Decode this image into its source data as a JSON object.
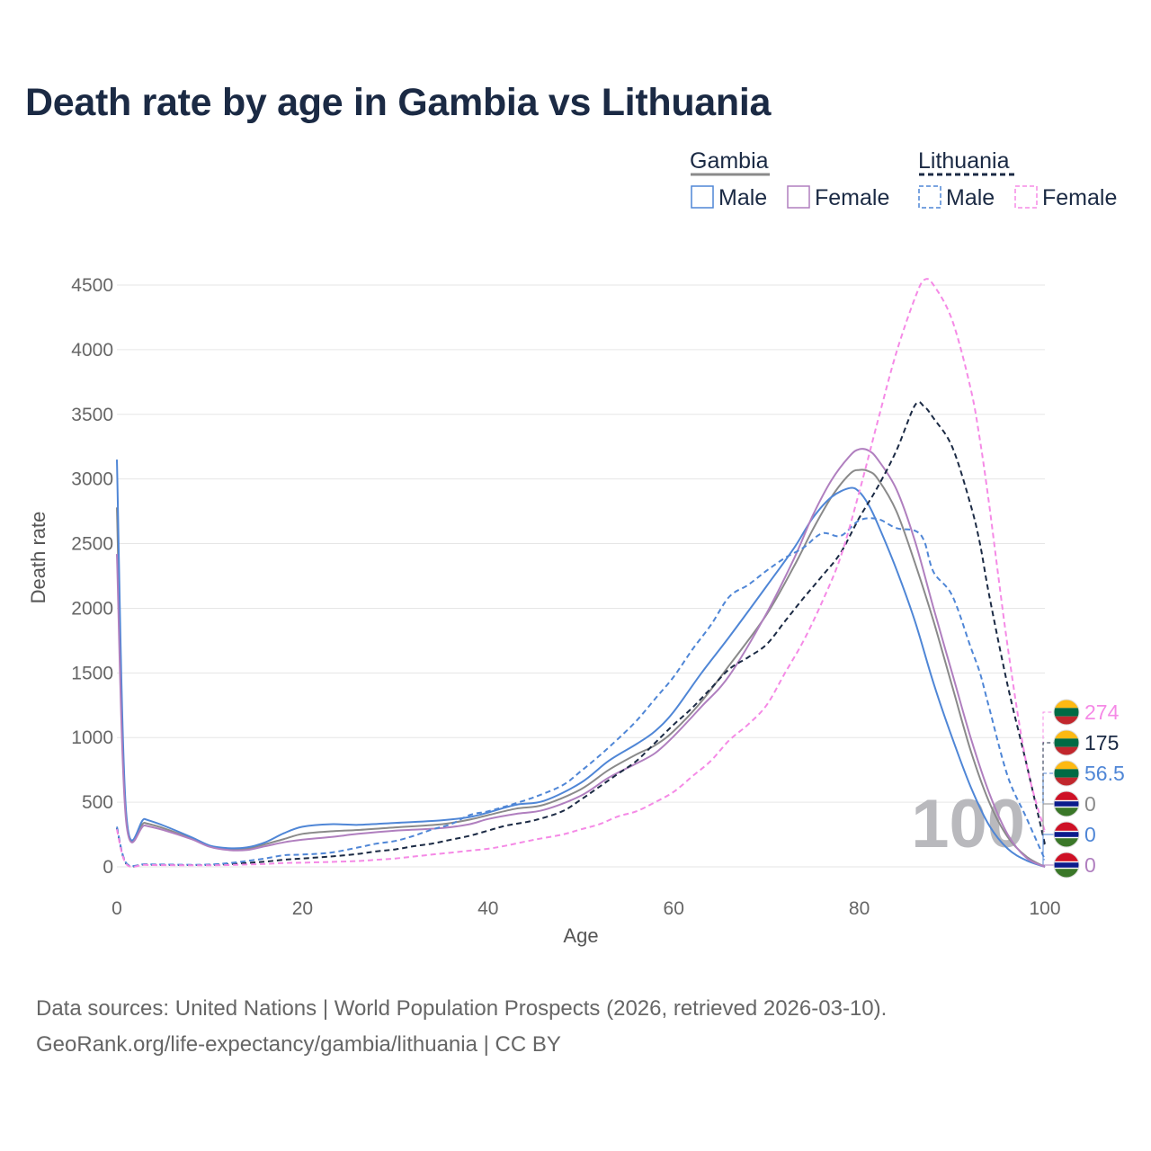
{
  "title": "Death rate by age in Gambia vs Lithuania",
  "footer": {
    "line1": "Data sources: United Nations | World Population Prospects (2026, retrieved 2026-03-10).",
    "line2": "GeoRank.org/life-expectancy/gambia/lithuania | CC BY"
  },
  "legend": {
    "groups": [
      {
        "name": "Gambia",
        "style": "solid",
        "color": "#8a8a8a"
      },
      {
        "name": "Lithuania",
        "style": "dashed",
        "color": "#1b2a44"
      }
    ],
    "items": [
      {
        "label": "Male",
        "group": "Gambia",
        "color": "#4f86d6",
        "style": "solid"
      },
      {
        "label": "Female",
        "group": "Gambia",
        "color": "#b07fbf",
        "style": "solid"
      },
      {
        "label": "Male",
        "group": "Lithuania",
        "color": "#4f86d6",
        "style": "dashed"
      },
      {
        "label": "Female",
        "group": "Lithuania",
        "color": "#f58ae6",
        "style": "dashed"
      }
    ]
  },
  "watermark": "100",
  "chart_data": {
    "type": "line",
    "title": "Death rate by age in Gambia vs Lithuania",
    "xlabel": "Age",
    "ylabel": "Death rate",
    "xlim": [
      0,
      100
    ],
    "ylim": [
      0,
      4500
    ],
    "xticks": [
      0,
      20,
      40,
      60,
      80,
      100
    ],
    "yticks": [
      0,
      500,
      1000,
      1500,
      2000,
      2500,
      3000,
      3500,
      4000,
      4500
    ],
    "grid": true,
    "series": [
      {
        "name": "Gambia Total",
        "color": "#8a8a8a",
        "dash": false,
        "x": [
          0,
          1,
          3,
          5,
          8,
          10,
          12,
          14,
          16,
          18,
          20,
          23,
          26,
          30,
          35,
          38,
          40,
          43,
          46,
          50,
          53,
          56,
          58,
          60,
          63,
          66,
          70,
          73,
          75,
          77,
          79,
          80,
          81,
          82,
          84,
          86,
          88,
          90,
          92,
          94,
          96,
          98,
          100
        ],
        "y": [
          2780,
          380,
          340,
          300,
          220,
          160,
          135,
          140,
          175,
          215,
          255,
          275,
          285,
          305,
          330,
          365,
          400,
          450,
          480,
          600,
          750,
          870,
          940,
          1050,
          1280,
          1560,
          1950,
          2330,
          2610,
          2860,
          3040,
          3070,
          3060,
          3000,
          2750,
          2350,
          1900,
          1400,
          900,
          500,
          230,
          80,
          0
        ]
      },
      {
        "name": "Gambia Male",
        "color": "#4f86d6",
        "dash": false,
        "x": [
          0,
          1,
          3,
          5,
          8,
          10,
          12,
          14,
          16,
          18,
          20,
          23,
          26,
          30,
          35,
          38,
          40,
          43,
          46,
          50,
          53,
          56,
          58,
          60,
          63,
          66,
          70,
          73,
          75,
          77,
          79,
          80,
          81,
          82,
          84,
          86,
          88,
          90,
          92,
          94,
          96,
          98,
          100
        ],
        "y": [
          3150,
          420,
          370,
          320,
          230,
          165,
          145,
          150,
          190,
          260,
          310,
          330,
          325,
          340,
          360,
          385,
          420,
          480,
          510,
          650,
          820,
          950,
          1050,
          1200,
          1500,
          1780,
          2170,
          2470,
          2700,
          2860,
          2930,
          2900,
          2800,
          2650,
          2300,
          1900,
          1420,
          1000,
          620,
          320,
          140,
          50,
          0
        ]
      },
      {
        "name": "Gambia Female",
        "color": "#b07fbf",
        "dash": false,
        "x": [
          0,
          1,
          3,
          5,
          8,
          10,
          12,
          14,
          16,
          18,
          20,
          23,
          26,
          30,
          35,
          38,
          40,
          43,
          46,
          50,
          53,
          56,
          58,
          60,
          63,
          66,
          70,
          73,
          75,
          77,
          79,
          80,
          81,
          82,
          84,
          86,
          88,
          90,
          92,
          94,
          96,
          98,
          100
        ],
        "y": [
          2420,
          350,
          320,
          285,
          215,
          155,
          130,
          130,
          160,
          190,
          210,
          230,
          255,
          280,
          300,
          330,
          370,
          410,
          440,
          550,
          690,
          800,
          880,
          1010,
          1240,
          1480,
          1960,
          2390,
          2720,
          2990,
          3180,
          3230,
          3220,
          3150,
          2920,
          2520,
          2000,
          1500,
          1000,
          570,
          250,
          70,
          0
        ]
      },
      {
        "name": "Lithuania Total",
        "color": "#1b2a44",
        "dash": true,
        "x": [
          0,
          1,
          3,
          5,
          8,
          10,
          12,
          14,
          16,
          18,
          20,
          23,
          26,
          28,
          30,
          32,
          34,
          36,
          38,
          40,
          42,
          45,
          48,
          50,
          52,
          54,
          56,
          58,
          60,
          62,
          64,
          66,
          68,
          70,
          72,
          74,
          76,
          78,
          80,
          82,
          84,
          86,
          87,
          88,
          90,
          92,
          93,
          94,
          96,
          98,
          100
        ],
        "y": [
          300,
          25,
          18,
          15,
          14,
          15,
          20,
          30,
          40,
          55,
          65,
          80,
          100,
          120,
          135,
          160,
          180,
          210,
          240,
          280,
          320,
          360,
          430,
          520,
          620,
          720,
          820,
          960,
          1100,
          1230,
          1380,
          1530,
          1620,
          1720,
          1900,
          2080,
          2250,
          2430,
          2700,
          2940,
          3220,
          3570,
          3560,
          3470,
          3250,
          2800,
          2500,
          2100,
          1400,
          800,
          175
        ]
      },
      {
        "name": "Lithuania Male",
        "color": "#4f86d6",
        "dash": true,
        "x": [
          0,
          1,
          3,
          5,
          8,
          10,
          12,
          14,
          16,
          18,
          20,
          23,
          26,
          28,
          30,
          32,
          34,
          36,
          38,
          40,
          42,
          45,
          48,
          50,
          52,
          54,
          56,
          58,
          60,
          62,
          64,
          66,
          68,
          70,
          72,
          74,
          76,
          78,
          80,
          82,
          84,
          86,
          87,
          88,
          90,
          92,
          93,
          94,
          96,
          98,
          100
        ],
        "y": [
          310,
          30,
          20,
          18,
          16,
          18,
          28,
          45,
          65,
          90,
          95,
          110,
          150,
          180,
          200,
          240,
          290,
          330,
          400,
          430,
          470,
          540,
          630,
          740,
          860,
          990,
          1130,
          1300,
          1470,
          1680,
          1870,
          2090,
          2180,
          2290,
          2390,
          2470,
          2580,
          2560,
          2680,
          2690,
          2620,
          2600,
          2520,
          2280,
          2100,
          1700,
          1500,
          1230,
          700,
          380,
          56.5
        ]
      },
      {
        "name": "Lithuania Female",
        "color": "#f58ae6",
        "dash": true,
        "x": [
          0,
          1,
          3,
          5,
          8,
          10,
          12,
          14,
          16,
          18,
          20,
          23,
          26,
          28,
          30,
          32,
          34,
          36,
          38,
          40,
          42,
          45,
          48,
          50,
          52,
          54,
          56,
          58,
          60,
          62,
          64,
          66,
          68,
          70,
          72,
          74,
          76,
          78,
          80,
          82,
          84,
          86,
          87,
          88,
          90,
          92,
          93,
          94,
          96,
          98,
          100
        ],
        "y": [
          290,
          22,
          15,
          13,
          12,
          12,
          14,
          18,
          22,
          30,
          32,
          38,
          45,
          55,
          65,
          80,
          95,
          110,
          125,
          140,
          165,
          210,
          250,
          290,
          330,
          390,
          430,
          500,
          580,
          700,
          820,
          980,
          1100,
          1250,
          1500,
          1750,
          2050,
          2400,
          2900,
          3450,
          3980,
          4400,
          4540,
          4500,
          4230,
          3700,
          3300,
          2800,
          1700,
          800,
          274
        ]
      }
    ]
  }
}
